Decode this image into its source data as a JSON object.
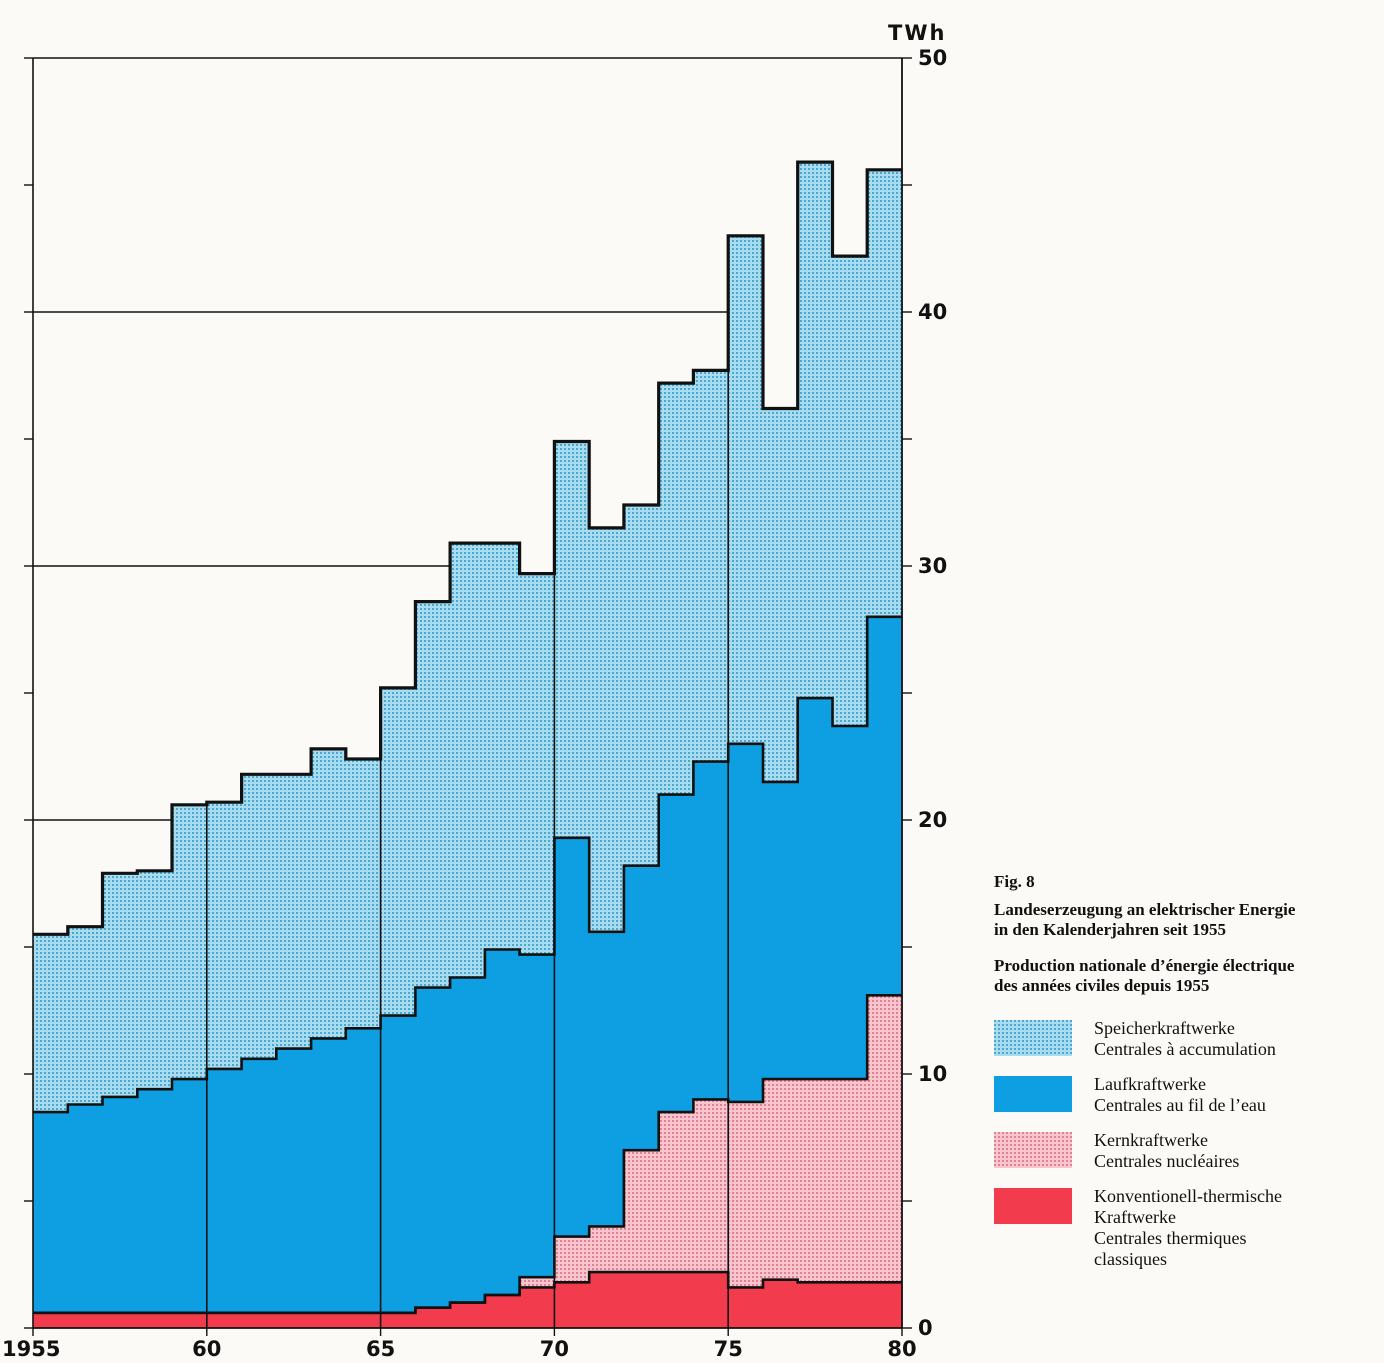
{
  "chart_data": {
    "type": "area",
    "stacked": true,
    "step": true,
    "unit": "TWh",
    "xlim": [
      1955,
      1980
    ],
    "ylim": [
      0,
      50
    ],
    "x_ticks": [
      1955,
      1960,
      1965,
      1970,
      1975,
      1980
    ],
    "x_tick_labels": [
      "1955",
      "60",
      "65",
      "70",
      "75",
      "80"
    ],
    "y_ticks": [
      0,
      10,
      20,
      30,
      40,
      50
    ],
    "y_tick_labels": [
      "0",
      "10",
      "20",
      "30",
      "40",
      "50"
    ],
    "grid_lines_y": [
      20,
      30,
      40
    ],
    "years": [
      1955,
      1956,
      1957,
      1958,
      1959,
      1960,
      1961,
      1962,
      1963,
      1964,
      1965,
      1966,
      1967,
      1968,
      1969,
      1970,
      1971,
      1972,
      1973,
      1974,
      1975,
      1976,
      1977,
      1978,
      1979
    ],
    "series": [
      {
        "name": "Konventionell-thermische Kraftwerke",
        "values": [
          0.6,
          0.6,
          0.6,
          0.6,
          0.6,
          0.6,
          0.6,
          0.6,
          0.6,
          0.6,
          0.6,
          0.8,
          1.0,
          1.3,
          1.6,
          1.8,
          2.2,
          2.2,
          2.2,
          2.2,
          1.6,
          1.9,
          1.8,
          1.8,
          1.8
        ]
      },
      {
        "name": "Kernkraftwerke",
        "values": [
          0,
          0,
          0,
          0,
          0,
          0,
          0,
          0,
          0,
          0,
          0,
          0,
          0,
          0,
          0.4,
          1.8,
          1.8,
          4.8,
          6.3,
          6.8,
          7.3,
          7.9,
          8.0,
          8.0,
          11.3
        ]
      },
      {
        "name": "Laufkraftwerke",
        "values": [
          7.9,
          8.2,
          8.5,
          8.8,
          9.2,
          9.6,
          10.0,
          10.4,
          10.8,
          11.2,
          11.7,
          12.6,
          12.8,
          13.6,
          12.7,
          15.7,
          11.6,
          11.2,
          12.5,
          13.3,
          14.1,
          11.7,
          15.0,
          13.9,
          14.9
        ]
      },
      {
        "name": "Speicherkraftwerke",
        "values": [
          7.0,
          7.0,
          8.8,
          8.6,
          10.8,
          10.5,
          11.2,
          10.8,
          11.4,
          10.6,
          12.9,
          15.2,
          17.1,
          16.0,
          15.0,
          15.6,
          15.9,
          14.2,
          16.2,
          15.4,
          20.0,
          14.7,
          21.1,
          18.5,
          17.6
        ]
      }
    ],
    "colors": {
      "speicher": "#9fd7ea",
      "lauf": "#0e9fe2",
      "kern": "#f4b2bd",
      "thermisch": "#f23b4c"
    }
  },
  "caption": {
    "fig_number": "Fig. 8",
    "title_de_1": "Landeserzeugung an elektrischer Energie",
    "title_de_2": "in den Kalenderjahren seit 1955",
    "title_fr_1": "Production nationale d’énergie électrique",
    "title_fr_2": "des années civiles depuis 1955"
  },
  "legend": [
    {
      "line1": "Speicherkraftwerke",
      "line2": "Centrales à accumulation",
      "line3": "",
      "line4": ""
    },
    {
      "line1": "Laufkraftwerke",
      "line2": "Centrales au fil de l’eau",
      "line3": "",
      "line4": ""
    },
    {
      "line1": "Kernkraftwerke",
      "line2": "Centrales nucléaires",
      "line3": "",
      "line4": ""
    },
    {
      "line1": "Konventionell-thermische",
      "line2": "Kraftwerke",
      "line3": "Centrales thermiques",
      "line4": "classiques"
    }
  ]
}
